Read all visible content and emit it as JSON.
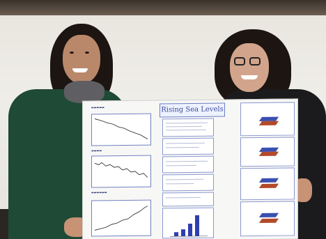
{
  "poster": {
    "title": "Rising Sea Levels"
  },
  "colors": {
    "wall": "#efede8",
    "jacket_left": "#1f4a35",
    "jacket_right": "#1b1b1d",
    "poster_ink": "#3a4c9a",
    "bar_fill": "#2f3fae",
    "plate_blue": "#3b4fb0",
    "plate_red": "#b24a2a"
  },
  "icons": {
    "headphones": "headphones-icon"
  }
}
